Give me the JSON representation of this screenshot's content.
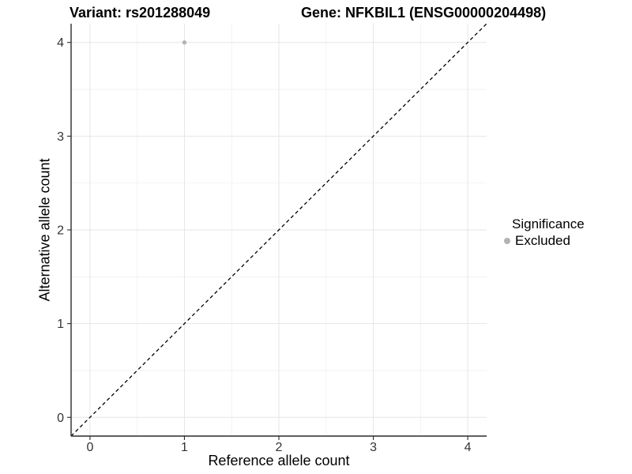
{
  "titles": {
    "variant": "Variant: rs201288049",
    "gene": "Gene: NFKBIL1 (ENSG00000204498)"
  },
  "axes": {
    "x_label": "Reference allele count",
    "y_label": "Alternative allele count"
  },
  "legend": {
    "title": "Significance",
    "items": [
      {
        "label": "Excluded",
        "color": "#b3b3b3"
      }
    ]
  },
  "chart_data": {
    "type": "scatter",
    "title": "Variant: rs201288049   Gene: NFKBIL1 (ENSG00000204498)",
    "xlabel": "Reference allele count",
    "ylabel": "Alternative allele count",
    "xlim": [
      -0.2,
      4.2
    ],
    "ylim": [
      -0.2,
      4.2
    ],
    "x_ticks": [
      0,
      1,
      2,
      3,
      4
    ],
    "y_ticks": [
      0,
      1,
      2,
      3,
      4
    ],
    "grid": {
      "major": true,
      "minor": true,
      "minor_interval": 0.5
    },
    "legend_position": "right",
    "series": [
      {
        "name": "Excluded",
        "color": "#b3b3b3",
        "points": [
          {
            "x": 1,
            "y": 4
          }
        ]
      }
    ],
    "reference_line": {
      "type": "diagonal",
      "equation": "y = x",
      "style": "dashed",
      "color": "#000000",
      "from": [
        -0.2,
        -0.2
      ],
      "to": [
        4.2,
        4.2
      ]
    }
  },
  "colors": {
    "background": "#ffffff",
    "point": "#b3b3b3",
    "grid_major": "#e6e6e6",
    "grid_minor": "#f1f1f1",
    "axis_line": "#2b2b2b",
    "tick_text": "#333333",
    "title_text": "#000000"
  }
}
